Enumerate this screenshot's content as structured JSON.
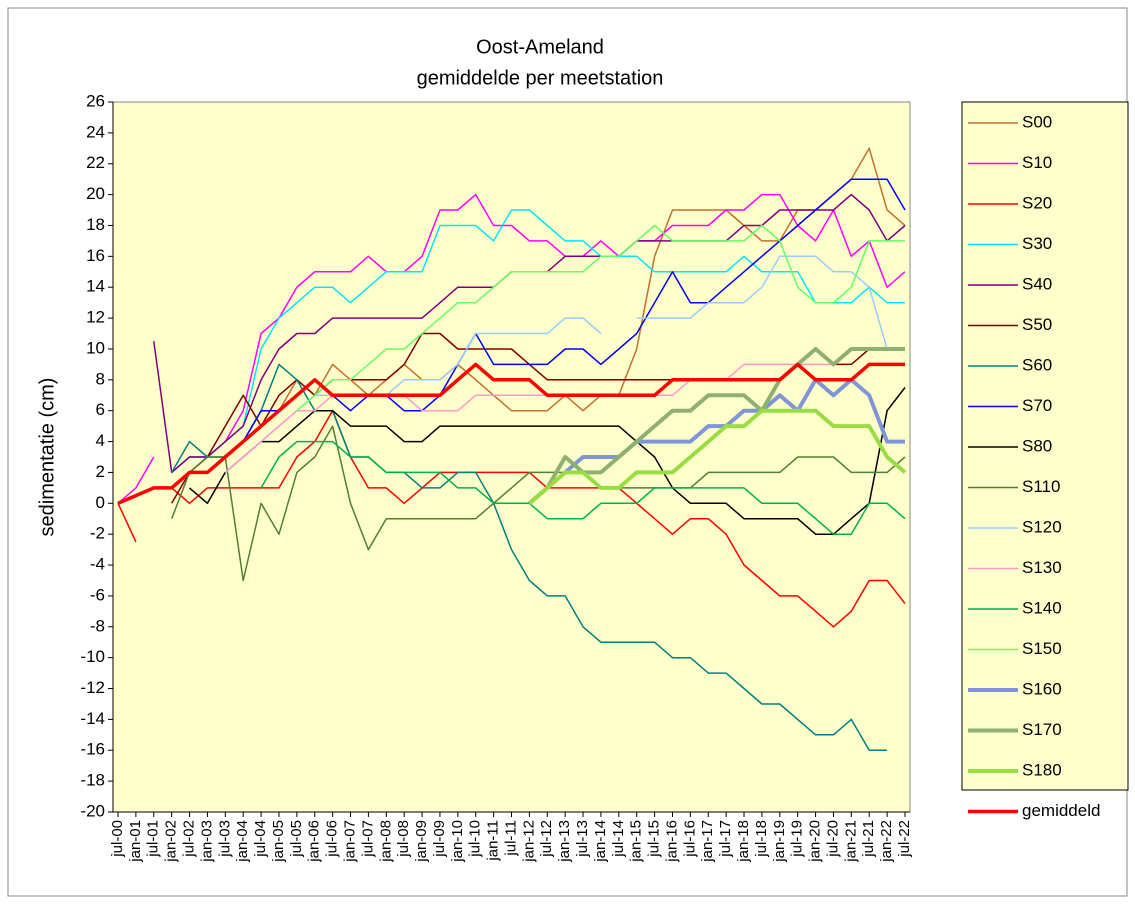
{
  "chart_data": {
    "type": "line",
    "title": "Oost-Ameland",
    "subtitle": "gemiddelde per meetstation",
    "y_label": "sedimentatie (cm)",
    "categories": [
      "jul-00",
      "jan-01",
      "jul-01",
      "jan-02",
      "jul-02",
      "jan-03",
      "jul-03",
      "jan-04",
      "jul-04",
      "jan-05",
      "jul-05",
      "jan-06",
      "jul-06",
      "jan-07",
      "jul-07",
      "jan-08",
      "jul-08",
      "jan-09",
      "jul-09",
      "jan-10",
      "jul-10",
      "jan-11",
      "jul-11",
      "jan-12",
      "jul-12",
      "jan-13",
      "jul-13",
      "jan-14",
      "jul-14",
      "jan-15",
      "jul-15",
      "jan-16",
      "jul-16",
      "jan-17",
      "jul-17",
      "jan-18",
      "jul-18",
      "jan-19",
      "jul-19",
      "jan-20",
      "jul-20",
      "jan-21",
      "jul-21",
      "jan-22",
      "jul-22"
    ],
    "ylim": [
      -20,
      26
    ],
    "yticks": [
      -20,
      -18,
      -16,
      -14,
      -12,
      -10,
      -8,
      -6,
      -4,
      -2,
      0,
      2,
      4,
      6,
      8,
      10,
      12,
      14,
      16,
      18,
      20,
      22,
      24,
      26
    ],
    "grid": false,
    "legend": "right",
    "series": [
      {
        "name": "S00",
        "color": "#c0722e",
        "width": 1.5,
        "values": [
          null,
          null,
          null,
          1,
          2,
          2,
          3,
          4,
          5,
          6,
          8,
          7,
          9,
          8,
          7,
          8,
          9,
          8,
          8,
          9,
          8,
          7,
          6,
          6,
          6,
          7,
          6,
          7,
          7,
          10,
          16,
          19,
          19,
          19,
          19,
          18,
          17,
          17,
          19,
          19,
          20,
          21,
          23,
          19,
          18
        ]
      },
      {
        "name": "S10",
        "color": "#ff00ff",
        "width": 1.5,
        "values": [
          0,
          1,
          3,
          null,
          3,
          3,
          4,
          6,
          11,
          12,
          14,
          15,
          15,
          15,
          16,
          15,
          15,
          16,
          19,
          19,
          20,
          18,
          18,
          17,
          17,
          16,
          16,
          17,
          16,
          17,
          17,
          18,
          18,
          18,
          19,
          19,
          20,
          20,
          18,
          17,
          19,
          16,
          17,
          14,
          15
        ]
      },
      {
        "name": "S20",
        "color": "#ff0000",
        "width": 1.5,
        "values": [
          0,
          -2.5,
          null,
          1,
          0,
          1,
          1,
          1,
          1,
          1,
          3,
          4,
          6,
          3,
          1,
          1,
          0,
          1,
          2,
          2,
          2,
          2,
          2,
          2,
          1,
          1,
          1,
          1,
          1,
          0,
          -1,
          -2,
          -1,
          -1,
          -2,
          -4,
          -5,
          -6,
          -6,
          -7,
          -8,
          -7,
          -5,
          -5,
          -6.5
        ]
      },
      {
        "name": "S30",
        "color": "#00e6ff",
        "width": 1.5,
        "values": [
          null,
          null,
          null,
          2,
          3,
          3,
          4,
          5,
          10,
          12,
          13,
          14,
          14,
          13,
          14,
          15,
          15,
          15,
          18,
          18,
          18,
          17,
          19,
          19,
          18,
          17,
          17,
          16,
          16,
          16,
          15,
          15,
          15,
          15,
          15,
          16,
          15,
          15,
          15,
          13,
          13,
          13,
          14,
          13,
          13
        ]
      },
      {
        "name": "S40",
        "color": "#800080",
        "width": 1.5,
        "values": [
          null,
          null,
          10.5,
          2,
          3,
          3,
          4,
          5,
          8,
          10,
          11,
          11,
          12,
          12,
          12,
          12,
          12,
          12,
          13,
          14,
          14,
          14,
          15,
          15,
          15,
          16,
          16,
          16,
          16,
          17,
          17,
          17,
          17,
          17,
          17,
          18,
          18,
          19,
          19,
          19,
          19,
          20,
          19,
          17,
          18
        ]
      },
      {
        "name": "S50",
        "color": "#800000",
        "width": 1.5,
        "values": [
          null,
          null,
          null,
          0,
          2,
          3,
          5,
          7,
          5,
          7,
          8,
          7,
          8,
          8,
          8,
          8,
          9,
          11,
          11,
          10,
          10,
          10,
          10,
          9,
          8,
          8,
          8,
          8,
          8,
          8,
          8,
          8,
          8,
          8,
          8,
          8,
          8,
          8,
          9,
          10,
          9,
          9,
          10,
          10,
          10
        ]
      },
      {
        "name": "S60",
        "color": "#008080",
        "width": 1.5,
        "values": [
          null,
          null,
          null,
          2,
          4,
          3,
          3,
          4,
          6,
          9,
          8,
          6,
          6,
          3,
          3,
          2,
          2,
          1,
          1,
          2,
          2,
          0,
          -3,
          -5,
          -6,
          -6,
          -8,
          -9,
          -9,
          -9,
          -9,
          -10,
          -10,
          -11,
          -11,
          -12,
          -13,
          -13,
          -14,
          -15,
          -15,
          -14,
          -16,
          -16,
          null
        ]
      },
      {
        "name": "S70",
        "color": "#0000ff",
        "width": 1.5,
        "values": [
          null,
          null,
          null,
          null,
          2,
          2,
          3,
          4,
          6,
          6,
          7,
          8,
          7,
          6,
          7,
          7,
          6,
          6,
          7,
          9,
          11,
          9,
          9,
          9,
          9,
          10,
          10,
          9,
          10,
          11,
          13,
          15,
          13,
          13,
          14,
          15,
          16,
          17,
          18,
          19,
          20,
          21,
          21,
          21,
          19
        ]
      },
      {
        "name": "S80",
        "color": "#000000",
        "width": 1.5,
        "values": [
          null,
          null,
          null,
          null,
          1,
          0,
          2,
          3,
          4,
          4,
          5,
          6,
          6,
          5,
          5,
          5,
          4,
          4,
          5,
          5,
          5,
          5,
          5,
          5,
          5,
          5,
          5,
          5,
          5,
          4,
          3,
          1,
          0,
          0,
          0,
          -1,
          -1,
          -1,
          -1,
          -2,
          -2,
          -1,
          0,
          6,
          7.5
        ]
      },
      {
        "name": "S110",
        "color": "#4f8030",
        "width": 1.5,
        "values": [
          null,
          null,
          null,
          -1,
          2,
          3,
          3,
          -5,
          0,
          -2,
          2,
          3,
          5,
          0,
          -3,
          -1,
          -1,
          -1,
          -1,
          -1,
          -1,
          0,
          1,
          2,
          2,
          2,
          2,
          1,
          1,
          1,
          1,
          1,
          1,
          2,
          2,
          2,
          2,
          2,
          3,
          3,
          3,
          2,
          2,
          2,
          3
        ]
      },
      {
        "name": "S120",
        "color": "#99ccff",
        "width": 1.5,
        "values": [
          null,
          null,
          null,
          null,
          null,
          null,
          2,
          3,
          4,
          5,
          6,
          7,
          7,
          7,
          7,
          7,
          8,
          8,
          8,
          9,
          11,
          11,
          11,
          11,
          11,
          12,
          12,
          11,
          null,
          12,
          12,
          12,
          12,
          13,
          13,
          13,
          14,
          16,
          16,
          16,
          15,
          15,
          14,
          10,
          null
        ]
      },
      {
        "name": "S130",
        "color": "#ff99cc",
        "width": 1.5,
        "values": [
          null,
          null,
          null,
          null,
          null,
          null,
          2,
          3,
          4,
          5,
          6,
          6,
          7,
          7,
          7,
          7,
          7,
          6,
          6,
          6,
          7,
          7,
          7,
          7,
          7,
          7,
          7,
          7,
          7,
          7,
          7,
          7,
          8,
          8,
          8,
          9,
          9,
          9,
          9,
          9,
          9,
          10,
          10,
          10,
          10
        ]
      },
      {
        "name": "S140",
        "color": "#00b050",
        "width": 1.5,
        "values": [
          null,
          null,
          null,
          null,
          null,
          null,
          null,
          null,
          1,
          3,
          4,
          4,
          4,
          3,
          3,
          2,
          2,
          2,
          2,
          1,
          1,
          0,
          0,
          0,
          -1,
          -1,
          -1,
          0,
          0,
          0,
          1,
          1,
          1,
          1,
          1,
          1,
          0,
          0,
          0,
          -1,
          -2,
          -2,
          0,
          0,
          -1
        ]
      },
      {
        "name": "S150",
        "color": "#66ff66",
        "width": 1.5,
        "values": [
          null,
          null,
          null,
          null,
          null,
          null,
          null,
          null,
          null,
          null,
          6,
          7,
          8,
          8,
          9,
          10,
          10,
          11,
          12,
          13,
          13,
          14,
          15,
          15,
          15,
          15,
          15,
          16,
          16,
          17,
          18,
          17,
          17,
          17,
          17,
          17,
          18,
          17,
          14,
          13,
          13,
          14,
          17,
          17,
          17
        ]
      },
      {
        "name": "S160",
        "color": "#7f95d6",
        "width": 4,
        "values": [
          null,
          null,
          null,
          null,
          null,
          null,
          null,
          null,
          null,
          null,
          null,
          null,
          null,
          null,
          null,
          null,
          null,
          null,
          null,
          null,
          null,
          null,
          null,
          0,
          1,
          2,
          3,
          3,
          3,
          4,
          4,
          4,
          4,
          5,
          5,
          6,
          6,
          7,
          6,
          8,
          7,
          8,
          7,
          4,
          4
        ]
      },
      {
        "name": "S170",
        "color": "#8fb070",
        "width": 4,
        "values": [
          null,
          null,
          null,
          null,
          null,
          null,
          null,
          null,
          null,
          null,
          null,
          null,
          null,
          null,
          null,
          null,
          null,
          null,
          null,
          null,
          null,
          null,
          null,
          0,
          1,
          3,
          2,
          2,
          3,
          4,
          5,
          6,
          6,
          7,
          7,
          7,
          6,
          8,
          9,
          10,
          9,
          10,
          10,
          10,
          10
        ]
      },
      {
        "name": "S180",
        "color": "#99dd44",
        "width": 4,
        "values": [
          null,
          null,
          null,
          null,
          null,
          null,
          null,
          null,
          null,
          null,
          null,
          null,
          null,
          null,
          null,
          null,
          null,
          null,
          null,
          null,
          null,
          null,
          null,
          0,
          1,
          2,
          2,
          1,
          1,
          2,
          2,
          2,
          3,
          4,
          5,
          5,
          6,
          6,
          6,
          6,
          5,
          5,
          5,
          3,
          2
        ]
      },
      {
        "name": "gemiddeld",
        "color": "#ff0000",
        "width": 3.5,
        "values": [
          0,
          0.5,
          1,
          1,
          2,
          2,
          3,
          4,
          5,
          6,
          7,
          8,
          7,
          7,
          7,
          7,
          7,
          7,
          7,
          8,
          9,
          8,
          8,
          8,
          7,
          7,
          7,
          7,
          7,
          7,
          7,
          8,
          8,
          8,
          8,
          8,
          8,
          8,
          9,
          8,
          8,
          8,
          9,
          9,
          9
        ]
      }
    ]
  }
}
